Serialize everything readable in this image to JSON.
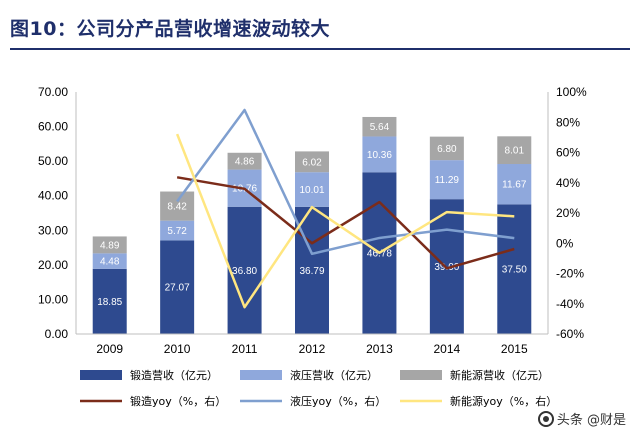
{
  "figure": {
    "title": "图10：公司分产品营收增速波动较大"
  },
  "watermark": {
    "text": "头条 @财是"
  },
  "colors": {
    "forging_bar": "#2e4a8f",
    "hydraulic_bar": "#8fa8dc",
    "newenergy_bar": "#a6a6a6",
    "forging_line": "#7b2c1a",
    "hydraulic_line": "#7f9fcf",
    "newenergy_line": "#ffe680",
    "title": "#1f2f6b"
  },
  "chart_data": {
    "type": "bar",
    "categories": [
      "2009",
      "2010",
      "2011",
      "2012",
      "2013",
      "2014",
      "2015"
    ],
    "left_axis": {
      "ylim": [
        0,
        70
      ],
      "ticks": [
        "0.00",
        "10.00",
        "20.00",
        "30.00",
        "40.00",
        "50.00",
        "60.00",
        "70.00"
      ]
    },
    "right_axis": {
      "ylim": [
        -60,
        100
      ],
      "ticks": [
        "-60%",
        "-40%",
        "-20%",
        "0%",
        "20%",
        "40%",
        "60%",
        "80%",
        "100%"
      ]
    },
    "stacked_series": [
      {
        "name": "锻造营收（亿元）",
        "values": [
          18.85,
          27.07,
          36.8,
          36.79,
          46.78,
          39.0,
          37.5
        ],
        "labels": [
          "18.85",
          "27.07",
          "36.80",
          "36.79",
          "46.78",
          "39.00",
          "37.50"
        ]
      },
      {
        "name": "液压营收（亿元）",
        "values": [
          4.48,
          5.72,
          10.76,
          10.01,
          10.36,
          11.29,
          11.67
        ],
        "labels": [
          "4.48",
          "5.72",
          "10.76",
          "10.01",
          "10.36",
          "11.29",
          "11.67"
        ]
      },
      {
        "name": "新能源营收（亿元）",
        "values": [
          4.89,
          8.42,
          4.86,
          6.02,
          5.64,
          6.8,
          8.01
        ],
        "labels": [
          "4.89",
          "8.42",
          "4.86",
          "6.02",
          "5.64",
          "6.80",
          "8.01"
        ]
      }
    ],
    "line_series": [
      {
        "name": "锻造yoy（%，右）",
        "values": [
          null,
          43.6,
          36.0,
          0.0,
          27.2,
          -16.6,
          -3.8
        ]
      },
      {
        "name": "液压yoy（%，右）",
        "values": [
          null,
          27.7,
          88.1,
          -7.0,
          3.5,
          9.0,
          3.4
        ]
      },
      {
        "name": "新能源yoy（%，右）",
        "values": [
          null,
          72.2,
          -42.3,
          23.9,
          -6.3,
          20.6,
          17.8
        ]
      }
    ],
    "grid": false,
    "legend_position": "bottom"
  }
}
